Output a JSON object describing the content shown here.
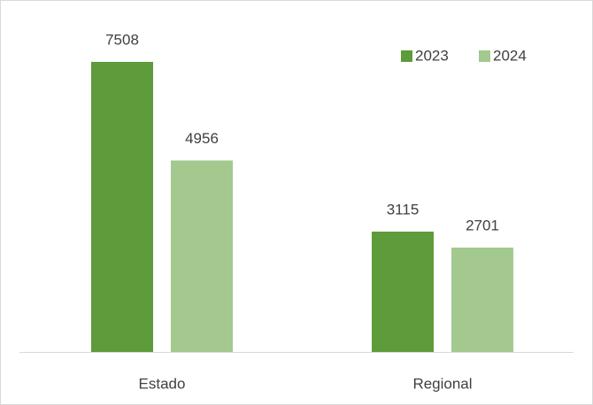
{
  "chart_data": {
    "type": "bar",
    "categories": [
      "Estado",
      "Regional"
    ],
    "series": [
      {
        "name": "2023",
        "color": "#5e9b3a",
        "values": [
          7508,
          3115
        ]
      },
      {
        "name": "2024",
        "color": "#a3c98e",
        "values": [
          4956,
          2701
        ]
      }
    ],
    "legend": "top-right",
    "grid": false
  }
}
